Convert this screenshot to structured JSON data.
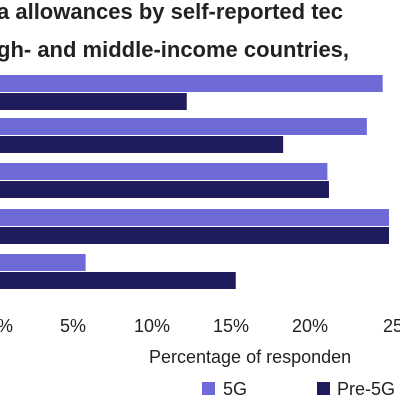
{
  "chart_data": {
    "type": "bar",
    "orientation": "horizontal",
    "title_lines": [
      "a allowances by self-reported tec",
      "gh- and middle-income countries,"
    ],
    "xlabel": "Percentage of responden",
    "xlim": [
      0,
      25
    ],
    "x_ticks": [
      0,
      5,
      10,
      15,
      20,
      25
    ],
    "x_tick_labels": [
      "%",
      "5%",
      "10%",
      "15%",
      "20%",
      "25"
    ],
    "grid": false,
    "legend_position": "bottom",
    "categories": [
      "",
      "",
      "",
      "",
      ""
    ],
    "series": [
      {
        "name": "5G",
        "color": "#6e6bd9",
        "values": [
          24.6,
          23.6,
          21.1,
          25,
          5.8
        ]
      },
      {
        "name": "Pre-5G",
        "color": "#1f1c5e",
        "values": [
          12.2,
          18.3,
          21.2,
          25,
          15.3
        ]
      }
    ]
  }
}
